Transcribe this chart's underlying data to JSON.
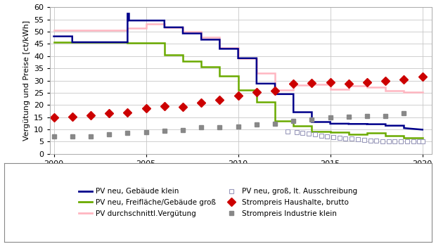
{
  "ylabel": "Vergütung und Preise [ct/kWh]",
  "xlim": [
    1999.8,
    2020.5
  ],
  "ylim": [
    0,
    60
  ],
  "yticks": [
    0,
    5,
    10,
    15,
    20,
    25,
    30,
    35,
    40,
    45,
    50,
    55,
    60
  ],
  "xticks": [
    2000,
    2005,
    2010,
    2015,
    2020
  ],
  "bg_color": "#ffffff",
  "grid_color": "#c8c8c8",
  "pv_gebaeude_klein": {
    "color": "#00008B",
    "linewidth": 1.8,
    "x": [
      2000,
      2001,
      2001,
      2004,
      2004,
      2004.08,
      2004.08,
      2006,
      2006,
      2007,
      2007,
      2008,
      2008,
      2009,
      2009,
      2010,
      2010,
      2011,
      2011,
      2012,
      2012,
      2013,
      2013,
      2014,
      2014,
      2015,
      2015,
      2016,
      2016,
      2017,
      2017,
      2018,
      2018,
      2019,
      2019,
      2020
    ],
    "y": [
      48.1,
      48.1,
      45.7,
      45.7,
      57.4,
      57.4,
      54.6,
      54.6,
      51.8,
      51.8,
      49.3,
      49.3,
      46.75,
      46.75,
      43.0,
      43.0,
      39.14,
      39.14,
      28.74,
      28.74,
      24.43,
      24.43,
      17.02,
      17.02,
      13.0,
      13.0,
      12.31,
      12.31,
      12.2,
      12.2,
      12.1,
      12.1,
      11.5,
      11.5,
      10.5,
      9.87
    ]
  },
  "pv_freiflaeche": {
    "color": "#6aaa00",
    "linewidth": 1.8,
    "x": [
      2000,
      2004,
      2004,
      2006,
      2006,
      2007,
      2007,
      2008,
      2008,
      2009,
      2009,
      2010,
      2010,
      2011,
      2011,
      2012,
      2012,
      2013,
      2013,
      2014,
      2014,
      2015,
      2015,
      2016,
      2016,
      2017,
      2017,
      2018,
      2018,
      2019,
      2019,
      2020
    ],
    "y": [
      45.7,
      45.7,
      45.5,
      45.5,
      40.6,
      40.6,
      37.96,
      37.96,
      35.49,
      35.49,
      31.94,
      31.94,
      26.16,
      26.16,
      21.11,
      21.11,
      13.5,
      13.5,
      11.37,
      11.37,
      9.17,
      9.17,
      8.69,
      8.69,
      7.97,
      7.97,
      8.49,
      8.49,
      7.38,
      7.38,
      6.59,
      6.59
    ]
  },
  "pv_durchschnitt": {
    "color": "#ffb6c1",
    "linewidth": 1.8,
    "x": [
      2000,
      2004,
      2004,
      2005,
      2005,
      2006,
      2006,
      2007,
      2007,
      2008,
      2008,
      2009,
      2009,
      2010,
      2010,
      2011,
      2011,
      2012,
      2012,
      2013,
      2013,
      2014,
      2014,
      2015,
      2015,
      2016,
      2016,
      2017,
      2017,
      2018,
      2018,
      2019,
      2019,
      2020
    ],
    "y": [
      50.6,
      50.6,
      51.4,
      51.4,
      53.2,
      53.2,
      51.8,
      51.8,
      49.9,
      49.9,
      47.6,
      47.6,
      43.4,
      43.4,
      39.0,
      39.0,
      33.0,
      33.0,
      26.0,
      26.0,
      28.0,
      28.0,
      28.5,
      28.5,
      26.5,
      26.5,
      27.9,
      27.9,
      27.3,
      27.3,
      25.8,
      25.8,
      25.3,
      25.3
    ]
  },
  "pv_ausschreibung": {
    "color": "#9999bb",
    "marker": "s",
    "markersize": 4,
    "markerfacecolor": "white",
    "markeredgecolor": "#9999bb",
    "x": [
      2012.67,
      2013.17,
      2013.5,
      2013.83,
      2014.17,
      2014.5,
      2014.83,
      2015.17,
      2015.5,
      2015.83,
      2016.17,
      2016.5,
      2016.83,
      2017.17,
      2017.5,
      2017.83,
      2018.17,
      2018.5,
      2018.83,
      2019.17,
      2019.5,
      2019.83,
      2020.0
    ],
    "y": [
      9.1,
      8.8,
      8.5,
      8.2,
      7.9,
      7.5,
      7.2,
      6.9,
      6.6,
      6.3,
      6.1,
      5.9,
      5.7,
      5.5,
      5.3,
      5.2,
      5.1,
      5.0,
      5.1,
      5.2,
      5.1,
      5.0,
      5.0
    ]
  },
  "strompreis_haushalte": {
    "color": "#cc0000",
    "marker": "D",
    "markersize": 6,
    "x": [
      2000,
      2001,
      2002,
      2003,
      2004,
      2005,
      2006,
      2007,
      2008,
      2009,
      2010,
      2011,
      2012,
      2013,
      2014,
      2015,
      2016,
      2017,
      2018,
      2019,
      2020
    ],
    "y": [
      14.9,
      15.2,
      15.8,
      16.5,
      16.8,
      18.7,
      19.46,
      19.1,
      21.0,
      22.1,
      23.7,
      25.2,
      25.89,
      28.8,
      29.1,
      29.2,
      28.7,
      29.3,
      30.0,
      30.4,
      31.5
    ]
  },
  "strompreis_industrie": {
    "color": "#888888",
    "marker": "s",
    "markersize": 5,
    "x": [
      2000,
      2001,
      2002,
      2003,
      2004,
      2005,
      2006,
      2007,
      2008,
      2009,
      2010,
      2011,
      2012,
      2013,
      2014,
      2015,
      2016,
      2017,
      2018,
      2019
    ],
    "y": [
      7.2,
      7.2,
      7.2,
      7.9,
      8.4,
      8.7,
      9.3,
      9.7,
      10.7,
      10.7,
      11.0,
      12.0,
      12.4,
      13.5,
      14.0,
      15.0,
      15.2,
      15.4,
      15.5,
      16.5
    ]
  }
}
